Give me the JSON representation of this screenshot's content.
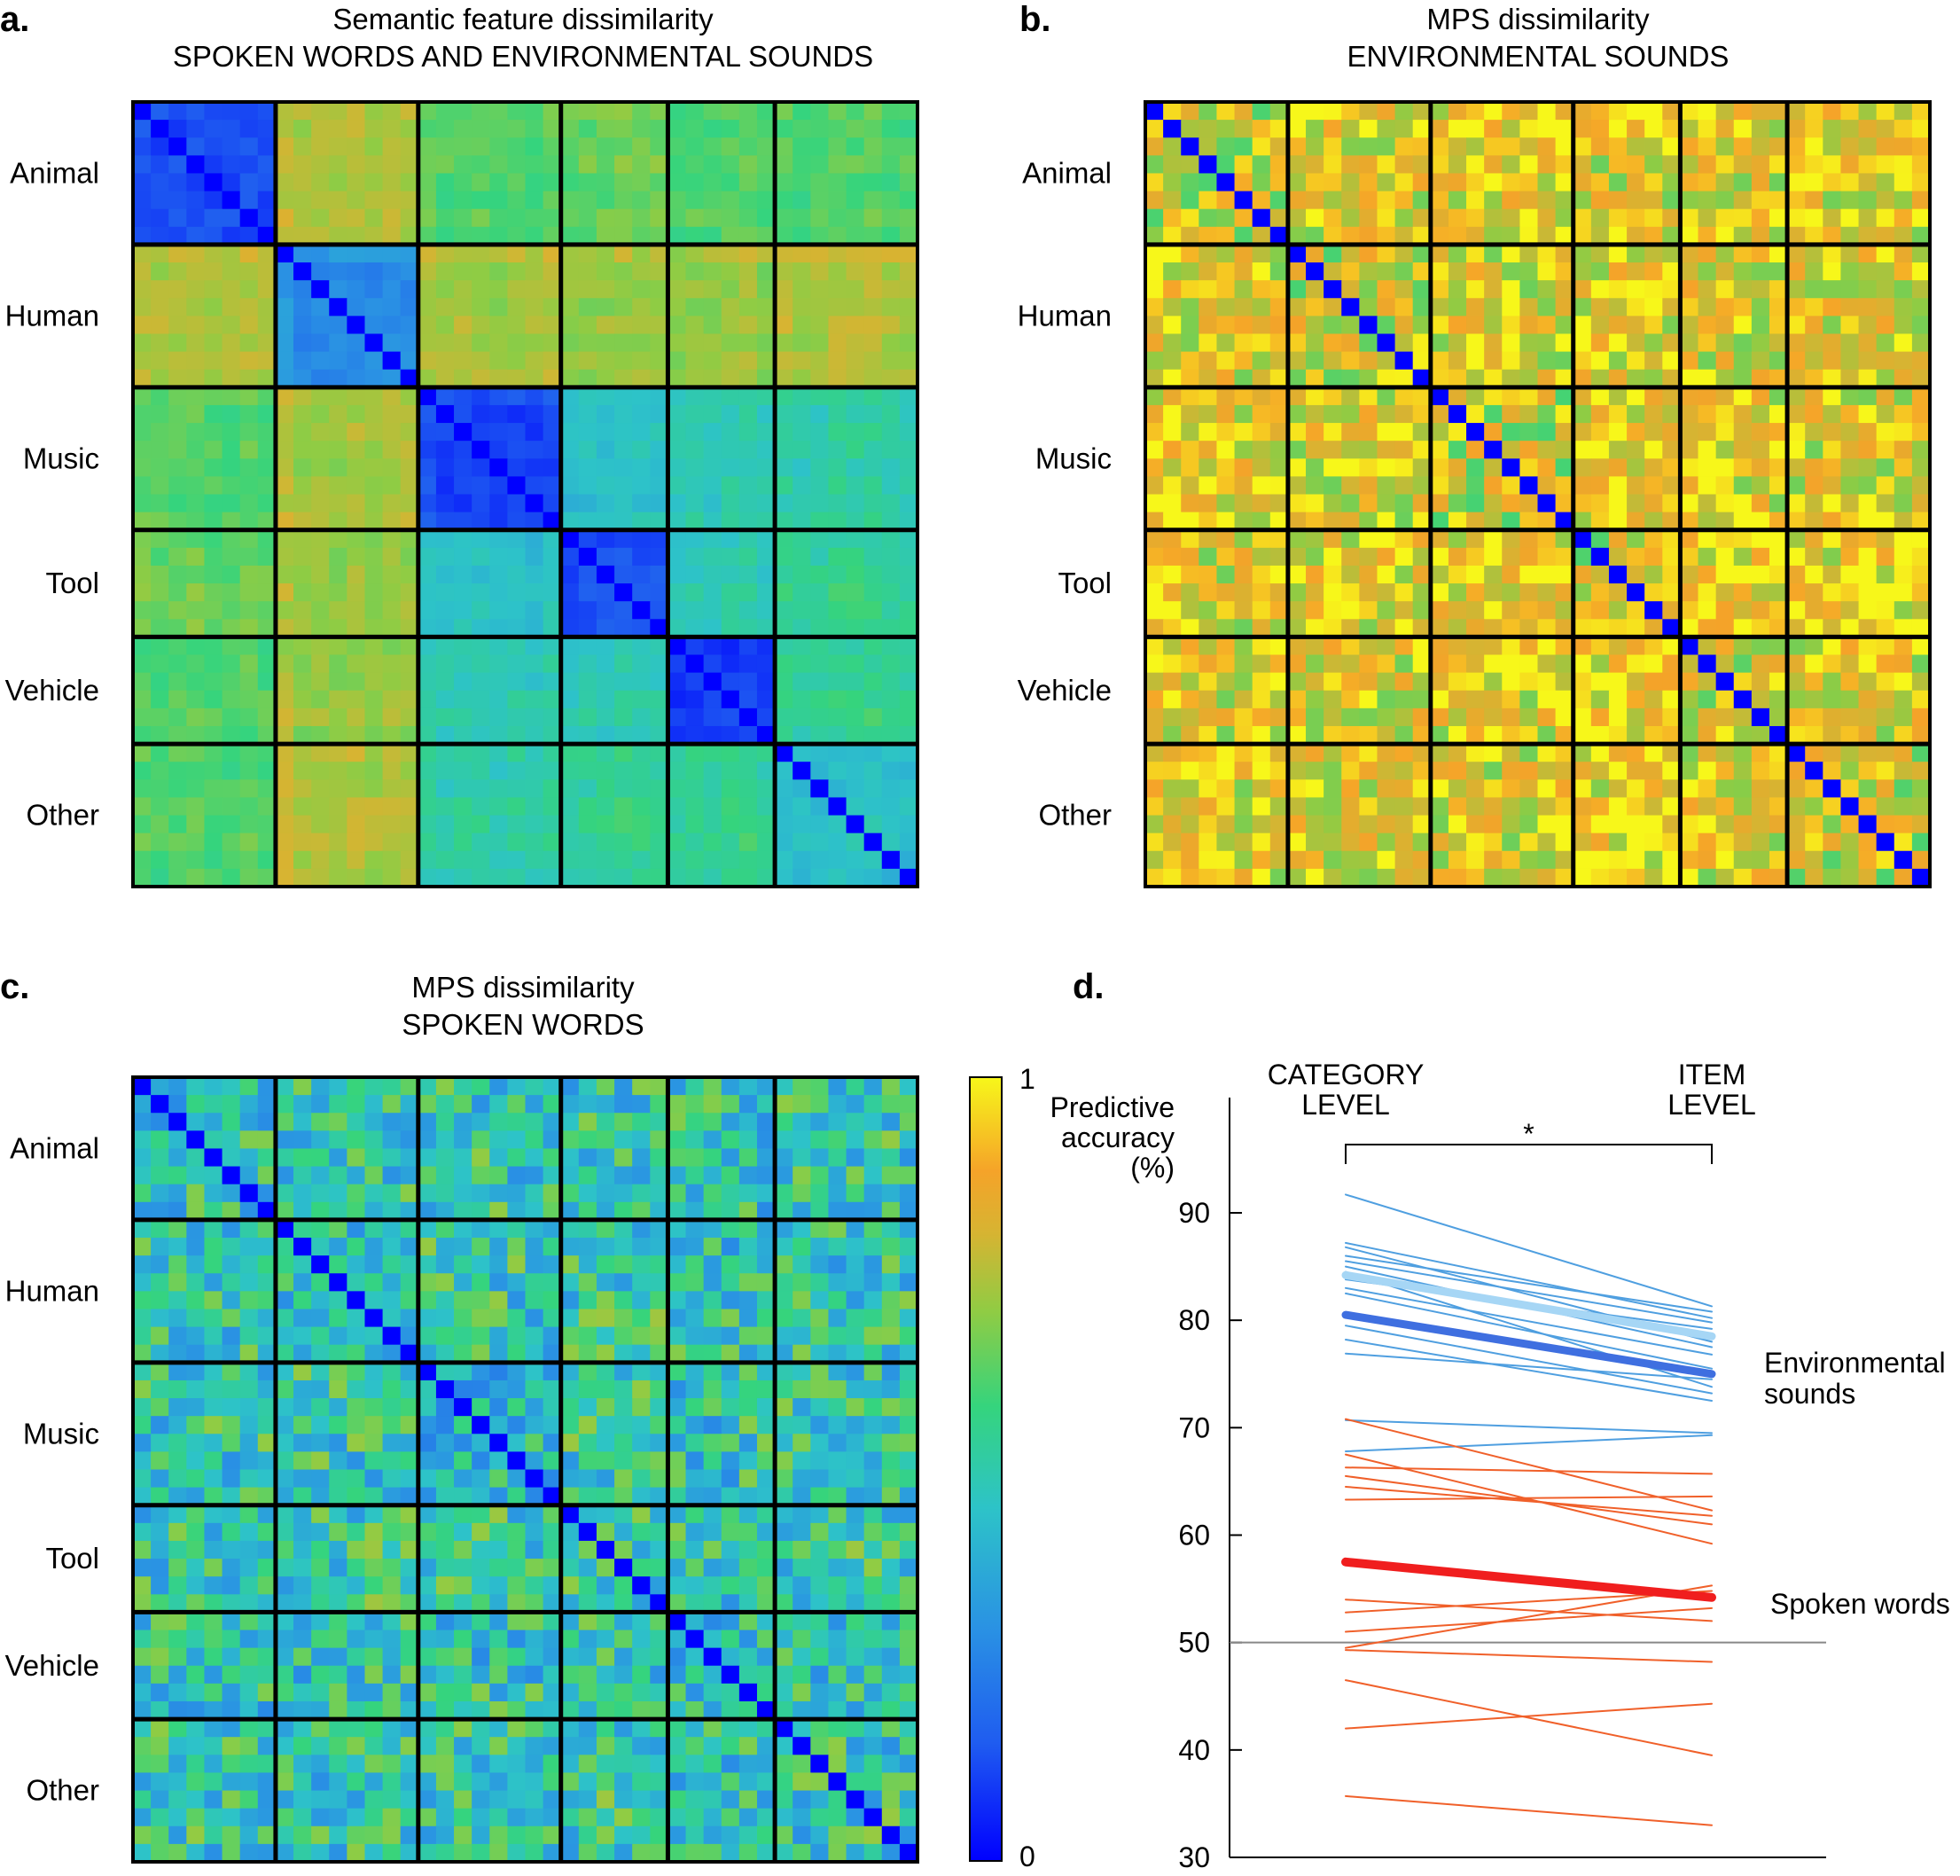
{
  "panels": {
    "a": {
      "label": "a.",
      "title1": "Semantic feature dissimilarity",
      "title2": "SPOKEN WORDS AND ENVIRONMENTAL SOUNDS"
    },
    "b": {
      "label": "b.",
      "title1": "MPS dissimilarity",
      "title2": "ENVIRONMENTAL SOUNDS"
    },
    "c": {
      "label": "c.",
      "title1": "MPS dissimilarity",
      "title2": "SPOKEN WORDS"
    },
    "d": {
      "label": "d."
    }
  },
  "categories": [
    "Animal",
    "Human",
    "Music",
    "Tool",
    "Vehicle",
    "Other"
  ],
  "colorbar": {
    "max_label": "1",
    "min_label": "0"
  },
  "chart_data": [
    {
      "type": "heatmap",
      "panel": "a",
      "title": "Semantic feature dissimilarity SPOKEN WORDS AND ENVIRONMENTAL SOUNDS",
      "categories": [
        "Animal",
        "Human",
        "Music",
        "Tool",
        "Vehicle",
        "Other"
      ],
      "items_per_category": [
        8,
        8,
        8,
        6,
        6,
        8
      ],
      "range": [
        0,
        1
      ],
      "colormap": "parula",
      "category_block_mean": [
        [
          0.12,
          0.75,
          0.62,
          0.65,
          0.62,
          0.62
        ],
        [
          0.75,
          0.3,
          0.74,
          0.72,
          0.72,
          0.76
        ],
        [
          0.62,
          0.74,
          0.12,
          0.45,
          0.5,
          0.52
        ],
        [
          0.65,
          0.72,
          0.45,
          0.14,
          0.5,
          0.55
        ],
        [
          0.62,
          0.72,
          0.5,
          0.5,
          0.1,
          0.55
        ],
        [
          0.62,
          0.76,
          0.52,
          0.55,
          0.55,
          0.45
        ]
      ]
    },
    {
      "type": "heatmap",
      "panel": "b",
      "title": "MPS dissimilarity ENVIRONMENTAL SOUNDS",
      "categories": [
        "Animal",
        "Human",
        "Music",
        "Tool",
        "Vehicle",
        "Other"
      ],
      "items_per_category": [
        8,
        8,
        8,
        6,
        6,
        8
      ],
      "range": [
        0,
        1
      ],
      "colormap": "parula",
      "category_block_mean": [
        [
          0.8,
          0.85,
          0.88,
          0.85,
          0.85,
          0.85
        ],
        [
          0.85,
          0.8,
          0.85,
          0.85,
          0.85,
          0.85
        ],
        [
          0.88,
          0.85,
          0.8,
          0.9,
          0.85,
          0.85
        ],
        [
          0.85,
          0.85,
          0.9,
          0.8,
          0.88,
          0.88
        ],
        [
          0.85,
          0.85,
          0.85,
          0.88,
          0.8,
          0.85
        ],
        [
          0.85,
          0.85,
          0.85,
          0.88,
          0.85,
          0.8
        ]
      ]
    },
    {
      "type": "heatmap",
      "panel": "c",
      "title": "MPS dissimilarity SPOKEN WORDS",
      "categories": [
        "Animal",
        "Human",
        "Music",
        "Tool",
        "Vehicle",
        "Other"
      ],
      "items_per_category": [
        8,
        8,
        8,
        6,
        6,
        8
      ],
      "range": [
        0,
        1
      ],
      "colormap": "parula",
      "category_block_mean": [
        [
          0.48,
          0.5,
          0.5,
          0.5,
          0.48,
          0.5
        ],
        [
          0.5,
          0.48,
          0.5,
          0.52,
          0.48,
          0.5
        ],
        [
          0.5,
          0.5,
          0.46,
          0.52,
          0.48,
          0.5
        ],
        [
          0.5,
          0.52,
          0.52,
          0.5,
          0.5,
          0.52
        ],
        [
          0.48,
          0.48,
          0.48,
          0.5,
          0.46,
          0.48
        ],
        [
          0.5,
          0.5,
          0.5,
          0.52,
          0.48,
          0.5
        ]
      ]
    },
    {
      "type": "line",
      "panel": "d",
      "x": [
        "CATEGORY LEVEL",
        "ITEM LEVEL"
      ],
      "x_labels": [
        [
          "CATEGORY",
          "LEVEL"
        ],
        [
          "ITEM",
          "LEVEL"
        ]
      ],
      "ylabel_lines": [
        "Predictive",
        "accuracy",
        "(%)"
      ],
      "ylim": [
        30,
        90
      ],
      "yticks": [
        30,
        40,
        50,
        60,
        70,
        80,
        90
      ],
      "chance_line": 50,
      "significance": "*",
      "colors": {
        "env_mean": "#3f6fe0",
        "env_subj": "#4f9fe0",
        "env_second": "#a6d6f5",
        "spoken_mean": "#f01e1e",
        "spoken_subj": "#f0602a"
      },
      "series": [
        {
          "name": "Environmental sounds",
          "group": "env",
          "mean": true,
          "values": [
            80.5,
            75.0
          ]
        },
        {
          "group": "env",
          "mean_secondary": true,
          "values": [
            84.2,
            78.5
          ]
        },
        {
          "group": "env",
          "values": [
            91.7,
            81.3
          ]
        },
        {
          "group": "env",
          "values": [
            87.2,
            80.2
          ]
        },
        {
          "group": "env",
          "values": [
            86.8,
            78.0
          ]
        },
        {
          "group": "env",
          "values": [
            86.0,
            80.8
          ]
        },
        {
          "group": "env",
          "values": [
            85.5,
            79.8
          ]
        },
        {
          "group": "env",
          "values": [
            85.0,
            77.5
          ]
        },
        {
          "group": "env",
          "values": [
            84.5,
            73.8
          ]
        },
        {
          "group": "env",
          "values": [
            83.8,
            79.2
          ]
        },
        {
          "group": "env",
          "values": [
            83.0,
            76.8
          ]
        },
        {
          "group": "env",
          "values": [
            82.5,
            75.5
          ]
        },
        {
          "group": "env",
          "values": [
            79.5,
            73.2
          ]
        },
        {
          "group": "env",
          "values": [
            78.2,
            72.5
          ]
        },
        {
          "group": "env",
          "values": [
            76.9,
            74.5
          ]
        },
        {
          "group": "env",
          "values": [
            70.7,
            69.5
          ]
        },
        {
          "group": "env",
          "values": [
            67.8,
            69.3
          ]
        },
        {
          "name": "Spoken words",
          "group": "spoken",
          "mean": true,
          "values": [
            57.5,
            54.2
          ]
        },
        {
          "group": "spoken",
          "values": [
            70.8,
            62.3
          ]
        },
        {
          "group": "spoken",
          "values": [
            67.5,
            59.2
          ]
        },
        {
          "group": "spoken",
          "values": [
            66.3,
            65.7
          ]
        },
        {
          "group": "spoken",
          "values": [
            65.5,
            61.0
          ]
        },
        {
          "group": "spoken",
          "values": [
            64.5,
            61.8
          ]
        },
        {
          "group": "spoken",
          "values": [
            63.3,
            63.6
          ]
        },
        {
          "group": "spoken",
          "values": [
            54.0,
            52.0
          ]
        },
        {
          "group": "spoken",
          "values": [
            52.8,
            54.8
          ]
        },
        {
          "group": "spoken",
          "values": [
            51.0,
            53.2
          ]
        },
        {
          "group": "spoken",
          "values": [
            49.5,
            55.3
          ]
        },
        {
          "group": "spoken",
          "values": [
            49.3,
            48.2
          ]
        },
        {
          "group": "spoken",
          "values": [
            46.5,
            39.5
          ]
        },
        {
          "group": "spoken",
          "values": [
            42.0,
            44.3
          ]
        },
        {
          "group": "spoken",
          "values": [
            35.7,
            33.0
          ]
        }
      ]
    }
  ]
}
